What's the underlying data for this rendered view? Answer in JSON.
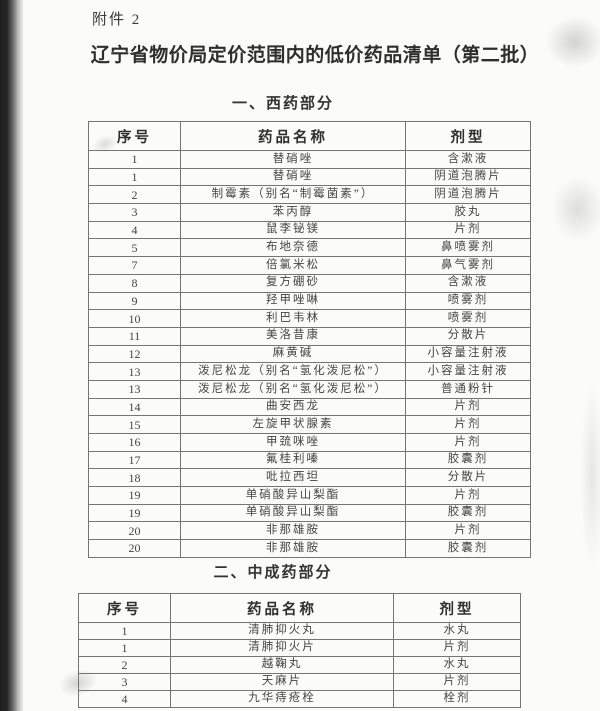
{
  "page": {
    "attachment_label": "附件 2",
    "title": "辽宁省物价局定价范围内的低价药品清单（第二批）"
  },
  "sections": [
    {
      "heading": "一、西药部分",
      "columns": [
        "序号",
        "药品名称",
        "剂型"
      ],
      "rows": [
        [
          "1",
          "替硝唑",
          "含漱液"
        ],
        [
          "1",
          "替硝唑",
          "阴道泡腾片"
        ],
        [
          "2",
          "制霉素（别名“制霉菌素”）",
          "阴道泡腾片"
        ],
        [
          "3",
          "苯丙醇",
          "胶丸"
        ],
        [
          "4",
          "鼠李铋镁",
          "片剂"
        ],
        [
          "5",
          "布地奈德",
          "鼻喷雾剂"
        ],
        [
          "7",
          "倍氯米松",
          "鼻气雾剂"
        ],
        [
          "8",
          "复方硼砂",
          "含漱液"
        ],
        [
          "9",
          "羟甲唑啉",
          "喷雾剂"
        ],
        [
          "10",
          "利巴韦林",
          "喷雾剂"
        ],
        [
          "11",
          "美洛昔康",
          "分散片"
        ],
        [
          "12",
          "麻黄碱",
          "小容量注射液"
        ],
        [
          "13",
          "泼尼松龙（别名“氢化泼尼松”）",
          "小容量注射液"
        ],
        [
          "13",
          "泼尼松龙（别名“氢化泼尼松”）",
          "普通粉针"
        ],
        [
          "14",
          "曲安西龙",
          "片剂"
        ],
        [
          "15",
          "左旋甲状腺素",
          "片剂"
        ],
        [
          "16",
          "甲巯咪唑",
          "片剂"
        ],
        [
          "17",
          "氟桂利嗪",
          "胶囊剂"
        ],
        [
          "18",
          "吡拉西坦",
          "分散片"
        ],
        [
          "19",
          "单硝酸异山梨酯",
          "片剂"
        ],
        [
          "19",
          "单硝酸异山梨酯",
          "胶囊剂"
        ],
        [
          "20",
          "非那雄胺",
          "片剂"
        ],
        [
          "20",
          "非那雄胺",
          "胶囊剂"
        ]
      ]
    },
    {
      "heading": "二、中成药部分",
      "columns": [
        "序号",
        "药品名称",
        "剂型"
      ],
      "rows": [
        [
          "1",
          "清肺抑火丸",
          "水丸"
        ],
        [
          "1",
          "清肺抑火片",
          "片剂"
        ],
        [
          "2",
          "越鞠丸",
          "水丸"
        ],
        [
          "3",
          "天麻片",
          "片剂"
        ],
        [
          "4",
          "九华痔疮栓",
          "栓剂"
        ]
      ]
    }
  ]
}
